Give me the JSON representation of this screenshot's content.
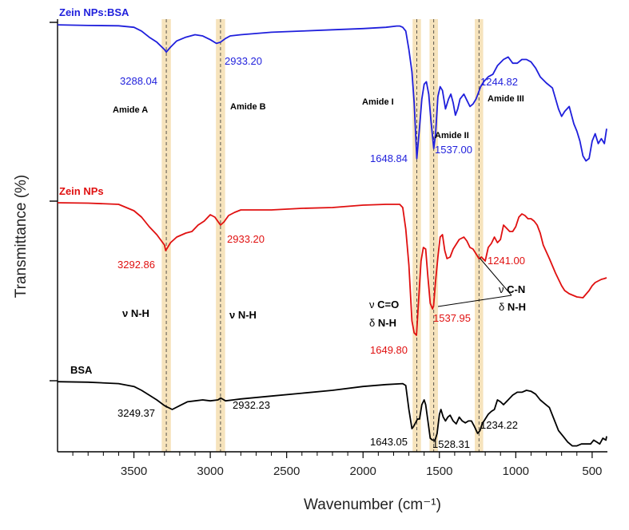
{
  "chart_data": {
    "type": "line",
    "title": "",
    "xlabel": "Wavenumber (cm⁻¹)",
    "ylabel": "Transmittance (%)",
    "xlim": [
      4000,
      400
    ],
    "x_reversed": true,
    "xticks": [
      3500,
      3000,
      2500,
      2000,
      1500,
      1000,
      500
    ],
    "xtick_labels": [
      "3500",
      "3000",
      "2500",
      "2000",
      "1500",
      "1000",
      "500"
    ],
    "y_units": "stacked offset, arbitrary",
    "highlight_bands": [
      {
        "center": 3288,
        "width": 60
      },
      {
        "center": 2933,
        "width": 60
      },
      {
        "center": 1648,
        "width": 55
      },
      {
        "center": 1537,
        "width": 55
      },
      {
        "center": 1241,
        "width": 55
      }
    ],
    "series": [
      {
        "name": "Zein NPs:BSA",
        "color": "#1f1fdc",
        "x": [
          4000,
          3800,
          3600,
          3500,
          3450,
          3400,
          3350,
          3300,
          3288,
          3260,
          3220,
          3160,
          3100,
          3050,
          3000,
          2960,
          2933,
          2900,
          2870,
          2800,
          2600,
          2400,
          2200,
          2000,
          1850,
          1780,
          1760,
          1740,
          1720,
          1700,
          1680,
          1665,
          1648,
          1630,
          1615,
          1600,
          1585,
          1570,
          1555,
          1540,
          1537,
          1525,
          1510,
          1495,
          1480,
          1460,
          1440,
          1425,
          1410,
          1395,
          1380,
          1365,
          1340,
          1320,
          1300,
          1280,
          1260,
          1245,
          1230,
          1210,
          1180,
          1150,
          1120,
          1080,
          1050,
          1020,
          990,
          960,
          930,
          900,
          870,
          840,
          800,
          760,
          720,
          700,
          680,
          650,
          620,
          600,
          580,
          560,
          540,
          520,
          500,
          480,
          460,
          440,
          420,
          405
        ],
        "y": [
          2,
          2.5,
          2.8,
          4,
          7,
          12,
          16,
          22,
          24,
          20,
          15,
          12,
          10,
          11,
          14,
          17,
          16,
          13,
          11,
          10,
          8,
          7,
          6,
          5,
          4,
          3,
          3,
          4,
          7,
          22,
          40,
          65,
          110,
          85,
          62,
          50,
          48,
          58,
          80,
          98,
          102,
          90,
          60,
          52,
          55,
          70,
          62,
          58,
          65,
          75,
          70,
          62,
          58,
          63,
          68,
          66,
          62,
          57,
          52,
          48,
          44,
          42,
          35,
          30,
          28,
          33,
          33,
          30,
          30,
          32,
          37,
          44,
          49,
          53,
          70,
          76,
          72,
          68,
          82,
          88,
          96,
          108,
          112,
          110,
          96,
          90,
          98,
          94,
          98,
          86
        ]
      },
      {
        "name": "Zein NPs",
        "color": "#e01010",
        "x": [
          4000,
          3800,
          3600,
          3500,
          3450,
          3400,
          3350,
          3300,
          3292,
          3260,
          3220,
          3160,
          3120,
          3080,
          3040,
          3000,
          2970,
          2933,
          2910,
          2880,
          2840,
          2800,
          2600,
          2400,
          2200,
          2000,
          1850,
          1760,
          1740,
          1720,
          1700,
          1680,
          1665,
          1650,
          1635,
          1620,
          1605,
          1590,
          1575,
          1560,
          1545,
          1538,
          1525,
          1510,
          1495,
          1480,
          1465,
          1450,
          1430,
          1410,
          1390,
          1370,
          1340,
          1320,
          1300,
          1280,
          1260,
          1241,
          1225,
          1200,
          1180,
          1160,
          1140,
          1120,
          1100,
          1080,
          1060,
          1040,
          1020,
          1000,
          980,
          960,
          940,
          920,
          900,
          880,
          860,
          840,
          820,
          780,
          740,
          700,
          680,
          650,
          600,
          560,
          520,
          500,
          480,
          460,
          440,
          420,
          405
        ],
        "y": [
          2,
          2.5,
          4,
          12,
          20,
          32,
          42,
          55,
          62,
          52,
          45,
          40,
          38,
          30,
          25,
          17,
          20,
          30,
          26,
          18,
          14,
          11,
          11,
          9,
          8,
          5,
          4,
          4,
          8,
          35,
          80,
          150,
          165,
          168,
          120,
          75,
          58,
          60,
          95,
          128,
          135,
          131,
          100,
          70,
          45,
          42,
          62,
          72,
          70,
          60,
          54,
          48,
          45,
          50,
          58,
          60,
          66,
          72,
          70,
          75,
          58,
          53,
          45,
          52,
          48,
          30,
          34,
          38,
          38,
          32,
          20,
          16,
          18,
          22,
          22,
          25,
          30,
          40,
          55,
          72,
          90,
          106,
          112,
          116,
          120,
          121,
          112,
          106,
          102,
          100,
          98,
          97,
          96
        ]
      },
      {
        "name": "BSA",
        "color": "#000000",
        "x": [
          4000,
          3800,
          3600,
          3500,
          3450,
          3400,
          3350,
          3300,
          3249,
          3200,
          3150,
          3100,
          3050,
          3000,
          2950,
          2932,
          2900,
          2850,
          2800,
          2600,
          2400,
          2200,
          2000,
          1850,
          1740,
          1720,
          1700,
          1690,
          1680,
          1670,
          1660,
          1643,
          1630,
          1615,
          1600,
          1590,
          1575,
          1560,
          1545,
          1528,
          1515,
          1500,
          1490,
          1475,
          1460,
          1445,
          1430,
          1410,
          1390,
          1370,
          1350,
          1330,
          1310,
          1290,
          1270,
          1250,
          1234,
          1220,
          1200,
          1180,
          1160,
          1140,
          1120,
          1100,
          1080,
          1050,
          1020,
          990,
          960,
          930,
          900,
          870,
          840,
          810,
          780,
          750,
          720,
          690,
          660,
          630,
          600,
          570,
          540,
          510,
          490,
          470,
          450,
          430,
          410,
          405
        ],
        "y": [
          1,
          1.5,
          3,
          6,
          10,
          15,
          20,
          26,
          30,
          26,
          22,
          21,
          20,
          21,
          20,
          18,
          21,
          20,
          19,
          16,
          13,
          10,
          6,
          4,
          3,
          5,
          30,
          40,
          50,
          48,
          45,
          40,
          40,
          25,
          20,
          25,
          42,
          60,
          62,
          62,
          55,
          35,
          30,
          38,
          42,
          38,
          36,
          42,
          45,
          38,
          42,
          44,
          42,
          42,
          48,
          55,
          52,
          45,
          40,
          35,
          32,
          30,
          20,
          22,
          25,
          20,
          15,
          12,
          12,
          10,
          11,
          14,
          20,
          24,
          28,
          40,
          52,
          58,
          64,
          68,
          68,
          66,
          66,
          66,
          62,
          64,
          66,
          60,
          62,
          58
        ]
      }
    ],
    "peak_labels": [
      {
        "text": "3288.04",
        "series": "Zein NPs:BSA"
      },
      {
        "text": "2933.20",
        "series": "Zein NPs:BSA"
      },
      {
        "text": "1648.84",
        "series": "Zein NPs:BSA"
      },
      {
        "text": "1537.00",
        "series": "Zein NPs:BSA"
      },
      {
        "text": "1244.82",
        "series": "Zein NPs:BSA"
      },
      {
        "text": "3292.86",
        "series": "Zein NPs"
      },
      {
        "text": "2933.20",
        "series": "Zein NPs"
      },
      {
        "text": "1649.80",
        "series": "Zein NPs"
      },
      {
        "text": "1537.95",
        "series": "Zein NPs"
      },
      {
        "text": "1241.00",
        "series": "Zein NPs"
      },
      {
        "text": "3249.37",
        "series": "BSA"
      },
      {
        "text": "2932.23",
        "series": "BSA"
      },
      {
        "text": "1643.05",
        "series": "BSA"
      },
      {
        "text": "1528.31",
        "series": "BSA"
      },
      {
        "text": "1234.22",
        "series": "BSA"
      }
    ],
    "annotations": {
      "amide_a": "Amide A",
      "amide_b": "Amide B",
      "amide_i": "Amide I",
      "amide_ii": "Amide II",
      "amide_iii": "Amide III",
      "nu_nh_1": "ν N-H",
      "nu_nh_2": "ν N-H",
      "nu_co_prefix": "ν ",
      "nu_co_text": "C=O",
      "delta_nh_1_prefix": "δ ",
      "delta_nh_1_text": "N-H",
      "nu_cn_prefix": "ν ",
      "nu_cn_text": "C-N",
      "delta_nh_2_prefix": "δ ",
      "delta_nh_2_text": "N-H"
    }
  }
}
